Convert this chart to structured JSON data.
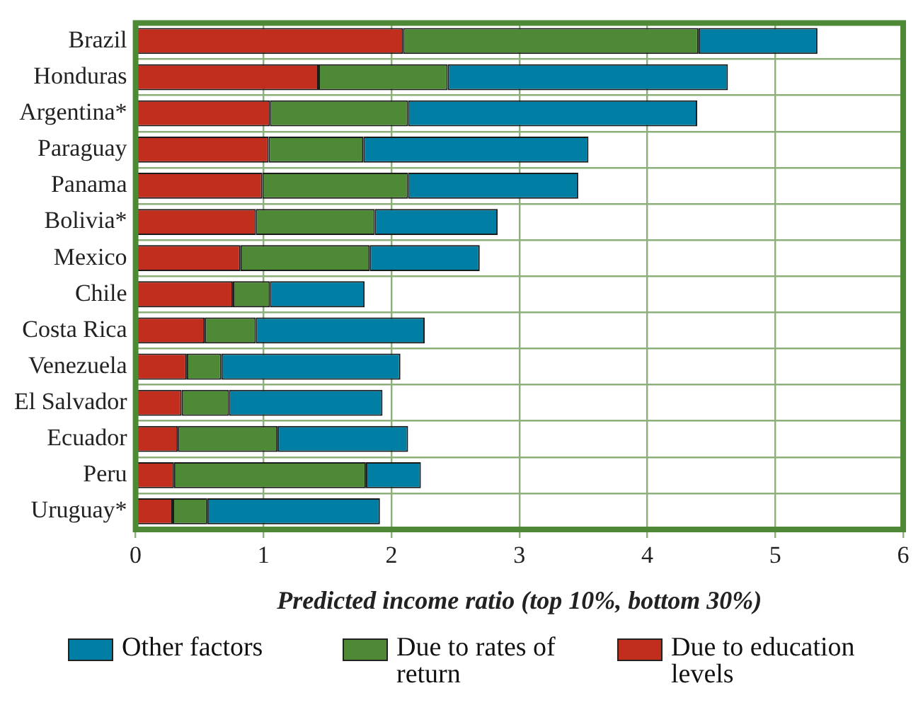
{
  "chart_data": {
    "type": "bar",
    "orientation": "horizontal",
    "stacked": true,
    "xlabel": "Predicted income ratio (top 10%, bottom 30%)",
    "categories": [
      "Brazil",
      "Honduras",
      "Argentina*",
      "Paraguay",
      "Panama",
      "Bolivia*",
      "Mexico",
      "Chile",
      "Costa Rica",
      "Venezuela",
      "El Salvador",
      "Ecuador",
      "Peru",
      "Uruguay*"
    ],
    "series": [
      {
        "name": "Due to education levels",
        "color": "#c22e1e",
        "values": [
          2.09,
          1.43,
          1.05,
          1.04,
          0.99,
          0.94,
          0.82,
          0.76,
          0.54,
          0.4,
          0.36,
          0.33,
          0.3,
          0.29
        ]
      },
      {
        "name": "Due to rates of return",
        "color": "#4e8a36",
        "values": [
          2.31,
          1.01,
          1.08,
          0.74,
          1.14,
          0.93,
          1.01,
          0.29,
          0.4,
          0.27,
          0.37,
          0.78,
          1.5,
          0.27
        ]
      },
      {
        "name": "Other factors",
        "color": "#007ea3",
        "values": [
          0.93,
          2.19,
          2.26,
          1.76,
          1.33,
          0.96,
          0.86,
          0.74,
          1.32,
          1.4,
          1.2,
          1.02,
          0.43,
          1.35
        ]
      }
    ],
    "xlim": [
      0,
      6
    ],
    "xticks": [
      0,
      1,
      2,
      3,
      4,
      5,
      6
    ],
    "grid": true,
    "legend": "bottom"
  }
}
